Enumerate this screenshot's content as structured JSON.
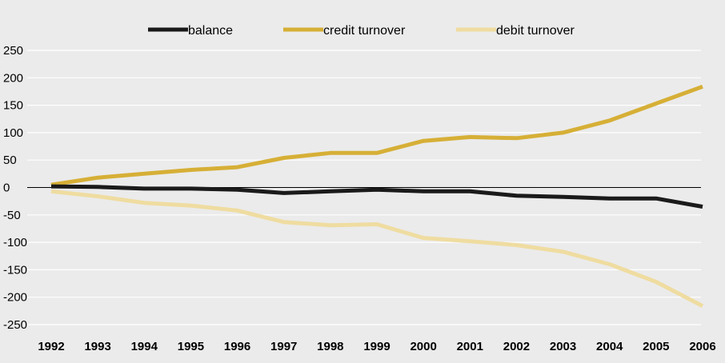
{
  "chart_data": {
    "type": "line",
    "x": [
      "1992",
      "1993",
      "1994",
      "1995",
      "1996",
      "1997",
      "1998",
      "1999",
      "2000",
      "2001",
      "2002",
      "2003",
      "2004",
      "2005",
      "2006"
    ],
    "series": [
      {
        "name": "balance",
        "color": "#1a1a1a",
        "values": [
          2,
          1,
          -2,
          -2,
          -4,
          -10,
          -7,
          -4,
          -7,
          -7,
          -15,
          -17,
          -20,
          -20,
          -35
        ]
      },
      {
        "name": "credit turnover",
        "color": "#d6af36",
        "values": [
          5,
          18,
          25,
          32,
          37,
          54,
          63,
          63,
          85,
          92,
          90,
          100,
          122,
          153,
          184
        ]
      },
      {
        "name": "debit turnover",
        "color": "#efdca0",
        "values": [
          -7,
          -16,
          -28,
          -33,
          -42,
          -63,
          -69,
          -67,
          -92,
          -98,
          -105,
          -117,
          -140,
          -172,
          -216
        ]
      }
    ],
    "yticks": [
      250,
      200,
      150,
      100,
      50,
      0,
      -50,
      -100,
      -150,
      -200,
      -250
    ],
    "ylim": [
      -250,
      250
    ],
    "legend": "top",
    "background": "#ebebeb",
    "grid": true
  }
}
